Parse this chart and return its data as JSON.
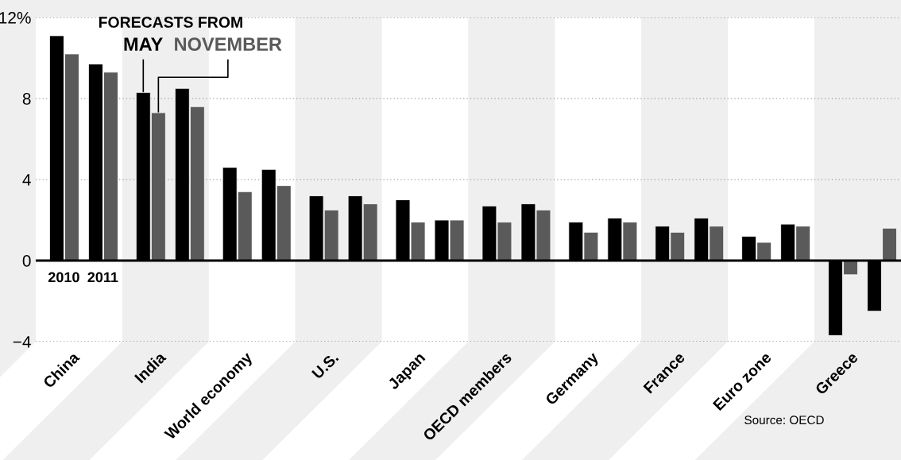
{
  "chart_data": {
    "type": "bar",
    "categories": [
      "China",
      "India",
      "World economy",
      "U.S.",
      "Japan",
      "OECD members",
      "Germany",
      "France",
      "Euro zone",
      "Greece"
    ],
    "legend_title": "FORECASTS FROM",
    "series": [
      {
        "name": "MAY",
        "color": "#000000",
        "values": [
          11.1,
          8.3,
          4.6,
          3.2,
          3.0,
          2.7,
          1.9,
          1.7,
          1.2,
          -3.7
        ]
      },
      {
        "name": "NOVEMBER",
        "color": "#5a5a5a",
        "values": [
          10.2,
          7.3,
          3.4,
          2.5,
          1.9,
          1.9,
          1.4,
          1.4,
          0.9,
          -0.7
        ]
      },
      {
        "color": "#000000",
        "values": [
          9.7,
          8.5,
          4.5,
          3.2,
          2.0,
          2.8,
          2.1,
          2.1,
          1.8,
          -2.5
        ]
      },
      {
        "color": "#5a5a5a",
        "values": [
          9.3,
          7.6,
          3.7,
          2.8,
          2.0,
          2.5,
          1.9,
          1.7,
          1.7,
          1.6
        ]
      }
    ],
    "ylim": [
      -4,
      12
    ],
    "yticks": [
      {
        "value": -4,
        "label": "−4"
      },
      0,
      4,
      8,
      {
        "value": 12,
        "label": "12%"
      }
    ],
    "grid": "y",
    "legend": "top left",
    "annotations": [
      "2010",
      "2011",
      "Source: OECD"
    ]
  }
}
